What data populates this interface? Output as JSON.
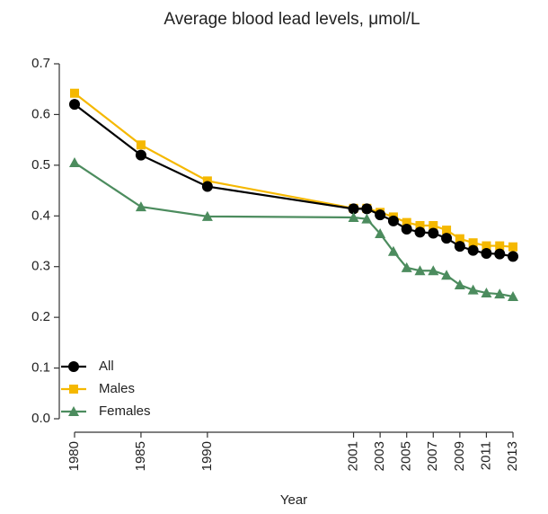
{
  "chart_data": {
    "type": "line",
    "title": "Average blood lead levels, μmol/L",
    "x_label": "Year",
    "x": [
      1980,
      1985,
      1990,
      2001,
      2002,
      2003,
      2004,
      2005,
      2006,
      2007,
      2008,
      2009,
      2010,
      2011,
      2012,
      2013
    ],
    "series": [
      {
        "name": "All",
        "color": "#000000",
        "marker": "circle",
        "values": [
          0.62,
          0.52,
          0.458,
          0.414,
          0.414,
          0.402,
          0.39,
          0.374,
          0.368,
          0.366,
          0.356,
          0.34,
          0.332,
          0.326,
          0.325,
          0.32
        ]
      },
      {
        "name": "Males",
        "color": "#f5b800",
        "marker": "square",
        "values": [
          0.642,
          0.54,
          0.469,
          0.415,
          0.415,
          0.407,
          0.398,
          0.387,
          0.381,
          0.381,
          0.372,
          0.355,
          0.347,
          0.341,
          0.341,
          0.339
        ]
      },
      {
        "name": "Females",
        "color": "#4c8c5e",
        "marker": "triangle",
        "values": [
          0.505,
          0.418,
          0.399,
          0.397,
          0.394,
          0.365,
          0.33,
          0.298,
          0.292,
          0.292,
          0.283,
          0.264,
          0.254,
          0.248,
          0.246,
          0.241
        ]
      }
    ],
    "xlim": [
      1979,
      2014
    ],
    "xticks": [
      1980,
      1985,
      1990,
      2001,
      2003,
      2005,
      2007,
      2009,
      2011,
      2013
    ],
    "ylim": [
      0,
      0.7
    ],
    "yticks": [
      {
        "value": 0,
        "label": "0.0"
      },
      0.1,
      0.2,
      0.3,
      0.4,
      0.5,
      0.6,
      0.7
    ],
    "legend": "lower left"
  }
}
